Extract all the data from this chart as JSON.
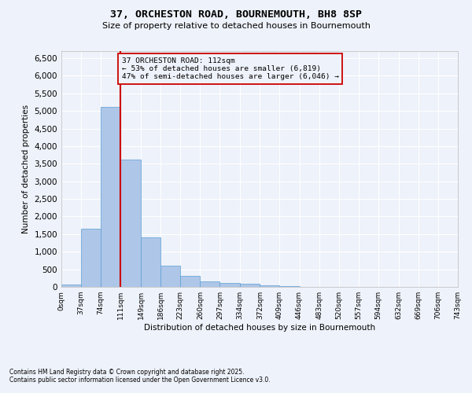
{
  "title1": "37, ORCHESTON ROAD, BOURNEMOUTH, BH8 8SP",
  "title2": "Size of property relative to detached houses in Bournemouth",
  "xlabel": "Distribution of detached houses by size in Bournemouth",
  "ylabel": "Number of detached properties",
  "footnote1": "Contains HM Land Registry data © Crown copyright and database right 2025.",
  "footnote2": "Contains public sector information licensed under the Open Government Licence v3.0.",
  "bar_edges": [
    0,
    37,
    74,
    111,
    149,
    186,
    223,
    260,
    297,
    334,
    372,
    409,
    446,
    483,
    520,
    557,
    594,
    632,
    669,
    706,
    743
  ],
  "bar_heights": [
    75,
    1650,
    5120,
    3620,
    1410,
    610,
    310,
    160,
    120,
    80,
    40,
    20,
    5,
    2,
    1,
    0,
    0,
    0,
    0,
    0
  ],
  "bar_color": "#aec6e8",
  "bar_edgecolor": "#5a9fd4",
  "vline_x": 111,
  "vline_color": "#cc0000",
  "ylim": [
    0,
    6700
  ],
  "yticks": [
    0,
    500,
    1000,
    1500,
    2000,
    2500,
    3000,
    3500,
    4000,
    4500,
    5000,
    5500,
    6000,
    6500
  ],
  "annotation_title": "37 ORCHESTON ROAD: 112sqm",
  "annotation_line1": "← 53% of detached houses are smaller (6,819)",
  "annotation_line2": "47% of semi-detached houses are larger (6,046) →",
  "annotation_box_color": "#cc0000",
  "annotation_text_color": "#000000",
  "bg_color": "#eef2fa",
  "grid_color": "#ffffff",
  "tick_labels": [
    "0sqm",
    "37sqm",
    "74sqm",
    "111sqm",
    "149sqm",
    "186sqm",
    "223sqm",
    "260sqm",
    "297sqm",
    "334sqm",
    "372sqm",
    "409sqm",
    "446sqm",
    "483sqm",
    "520sqm",
    "557sqm",
    "594sqm",
    "632sqm",
    "669sqm",
    "706sqm",
    "743sqm"
  ]
}
